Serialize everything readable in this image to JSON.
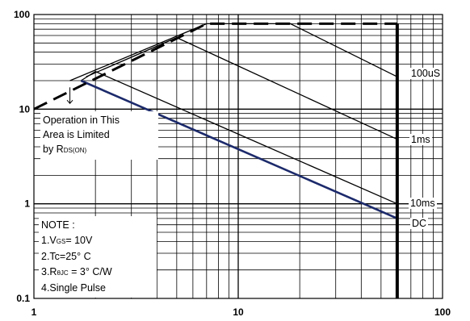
{
  "chart_data": {
    "type": "line",
    "x_scale": "log",
    "y_scale": "log",
    "xlim": [
      1,
      100
    ],
    "ylim": [
      0.1,
      100
    ],
    "x_ticks": [
      "1",
      "10",
      "100"
    ],
    "y_ticks": [
      "100",
      "10",
      "1",
      "0.1"
    ],
    "grid": true,
    "series": [
      {
        "name": "100uS",
        "x": [
          1.5,
          7,
          18,
          60
        ],
        "y": [
          20,
          80,
          80,
          22
        ]
      },
      {
        "name": "1ms",
        "x": [
          1.8,
          5,
          60
        ],
        "y": [
          22,
          57,
          4.8
        ]
      },
      {
        "name": "10ms",
        "x": [
          1.7,
          2,
          60
        ],
        "y": [
          20,
          25,
          1.0
        ]
      },
      {
        "name": "DC",
        "x": [
          1.7,
          60
        ],
        "y": [
          20,
          0.7
        ]
      }
    ],
    "limit_line": {
      "x": [
        1,
        7,
        60
      ],
      "y": [
        10,
        80,
        80
      ],
      "style": "dashed"
    },
    "vdss_limit_x": 60,
    "annotations": {
      "limit_text": [
        "Operation in This",
        "Area is Limited",
        "by R",
        "DS(ON)"
      ],
      "note": [
        "NOTE :",
        "1.V",
        "GS",
        "= 10V",
        "2.Tc=25° C",
        "3.R",
        "θJC",
        " = 3° C/W",
        "4.Single Pulse"
      ]
    }
  },
  "colors": {
    "dc_line": "#1c2a6b",
    "lines": "#000000",
    "grid": "#000000"
  }
}
